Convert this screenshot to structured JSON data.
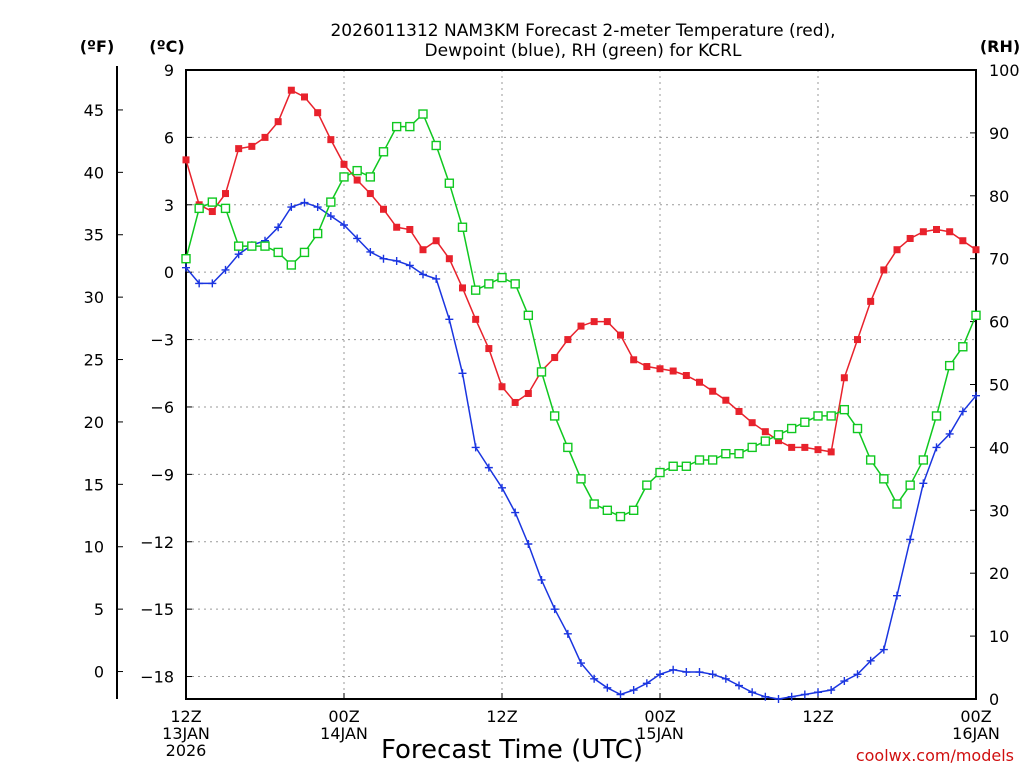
{
  "chart_data": {
    "type": "line",
    "title_lines": [
      "2026011312 NAM3KM Forecast 2-meter Temperature (red),",
      "Dewpoint (blue), RH (green) for KCRL"
    ],
    "xlabel": "Forecast Time (UTC)",
    "credit": "coolwx.com/models",
    "unit_labels": {
      "fahrenheit": "(ºF)",
      "celsius": "(ºC)",
      "rh": "(RH)"
    },
    "x_range_hours": [
      0,
      60
    ],
    "x_ticks": [
      {
        "hour": 0,
        "lines": [
          "12Z",
          "13JAN",
          "2026"
        ]
      },
      {
        "hour": 12,
        "lines": [
          "00Z",
          "14JAN"
        ]
      },
      {
        "hour": 24,
        "lines": [
          "12Z"
        ]
      },
      {
        "hour": 36,
        "lines": [
          "00Z",
          "15JAN"
        ]
      },
      {
        "hour": 48,
        "lines": [
          "12Z"
        ]
      },
      {
        "hour": 60,
        "lines": [
          "00Z",
          "16JAN"
        ]
      }
    ],
    "celsius_axis": {
      "range": [
        -19,
        9
      ],
      "ticks": [
        "9",
        "6",
        "3",
        "0",
        "−3",
        "−6",
        "−9",
        "−12",
        "−15",
        "−18"
      ]
    },
    "fahrenheit_axis": {
      "ticks": [
        "45",
        "40",
        "35",
        "30",
        "25",
        "20",
        "15",
        "10",
        "5",
        "0"
      ]
    },
    "rh_axis": {
      "range": [
        0,
        100
      ],
      "ticks": [
        "100",
        "90",
        "80",
        "70",
        "60",
        "50",
        "40",
        "30",
        "20",
        "10",
        "0"
      ]
    },
    "x_hours": [
      0,
      1,
      2,
      3,
      4,
      5,
      6,
      7,
      8,
      9,
      10,
      11,
      12,
      13,
      14,
      15,
      16,
      17,
      18,
      19,
      20,
      21,
      22,
      23,
      24,
      25,
      26,
      27,
      28,
      29,
      30,
      31,
      32,
      33,
      34,
      35,
      36,
      37,
      38,
      39,
      40,
      41,
      42,
      43,
      44,
      45,
      46,
      47,
      48,
      49,
      50,
      51,
      52,
      53,
      54,
      55,
      56,
      57,
      58,
      59,
      60
    ],
    "series": [
      {
        "name": "Temperature",
        "unit": "C",
        "color": "#e8222c",
        "marker": "filled-square",
        "values": [
          5.0,
          3.0,
          2.7,
          3.5,
          5.5,
          5.6,
          6.0,
          6.7,
          8.1,
          7.8,
          7.1,
          5.9,
          4.8,
          4.1,
          3.5,
          2.8,
          2.0,
          1.9,
          1.0,
          1.4,
          0.6,
          -0.7,
          -2.1,
          -3.4,
          -5.1,
          -5.8,
          -5.4,
          -4.4,
          -3.8,
          -3.0,
          -2.4,
          -2.2,
          -2.2,
          -2.8,
          -3.9,
          -4.2,
          -4.3,
          -4.4,
          -4.6,
          -4.9,
          -5.3,
          -5.7,
          -6.2,
          -6.7,
          -7.1,
          -7.5,
          -7.8,
          -7.8,
          -7.9,
          -8.0,
          -4.7,
          -3.0,
          -1.3,
          0.1,
          1.0,
          1.5,
          1.8,
          1.9,
          1.8,
          1.4,
          1.0
        ]
      },
      {
        "name": "Dewpoint",
        "unit": "C",
        "color": "#1a35e0",
        "marker": "plus",
        "values": [
          0.2,
          -0.5,
          -0.5,
          0.1,
          0.8,
          1.2,
          1.4,
          2.0,
          2.9,
          3.1,
          2.9,
          2.5,
          2.1,
          1.5,
          0.9,
          0.6,
          0.5,
          0.3,
          -0.1,
          -0.3,
          -2.1,
          -4.5,
          -7.8,
          -8.7,
          -9.6,
          -10.7,
          -12.1,
          -13.7,
          -15.0,
          -16.1,
          -17.4,
          -18.1,
          -18.5,
          -18.8,
          -18.6,
          -18.3,
          -17.9,
          -17.7,
          -17.8,
          -17.8,
          -17.9,
          -18.1,
          -18.4,
          -18.7,
          -18.9,
          -19.0,
          -18.9,
          -18.8,
          -18.7,
          -18.6,
          -18.2,
          -17.9,
          -17.3,
          -16.8,
          -14.4,
          -11.9,
          -9.4,
          -7.8,
          -7.2,
          -6.2,
          -5.5
        ]
      },
      {
        "name": "RH",
        "unit": "%",
        "color": "#10c820",
        "marker": "open-square",
        "values": [
          70,
          78,
          79,
          78,
          72,
          72,
          72,
          71,
          69,
          71,
          74,
          79,
          83,
          84,
          83,
          87,
          91,
          91,
          93,
          88,
          82,
          75,
          65,
          66,
          67,
          66,
          61,
          52,
          45,
          40,
          35,
          31,
          30,
          29,
          30,
          34,
          36,
          37,
          37,
          38,
          38,
          39,
          39,
          40,
          41,
          42,
          43,
          44,
          45,
          45,
          46,
          43,
          38,
          35,
          31,
          34,
          38,
          45,
          53,
          56,
          61
        ]
      }
    ]
  }
}
